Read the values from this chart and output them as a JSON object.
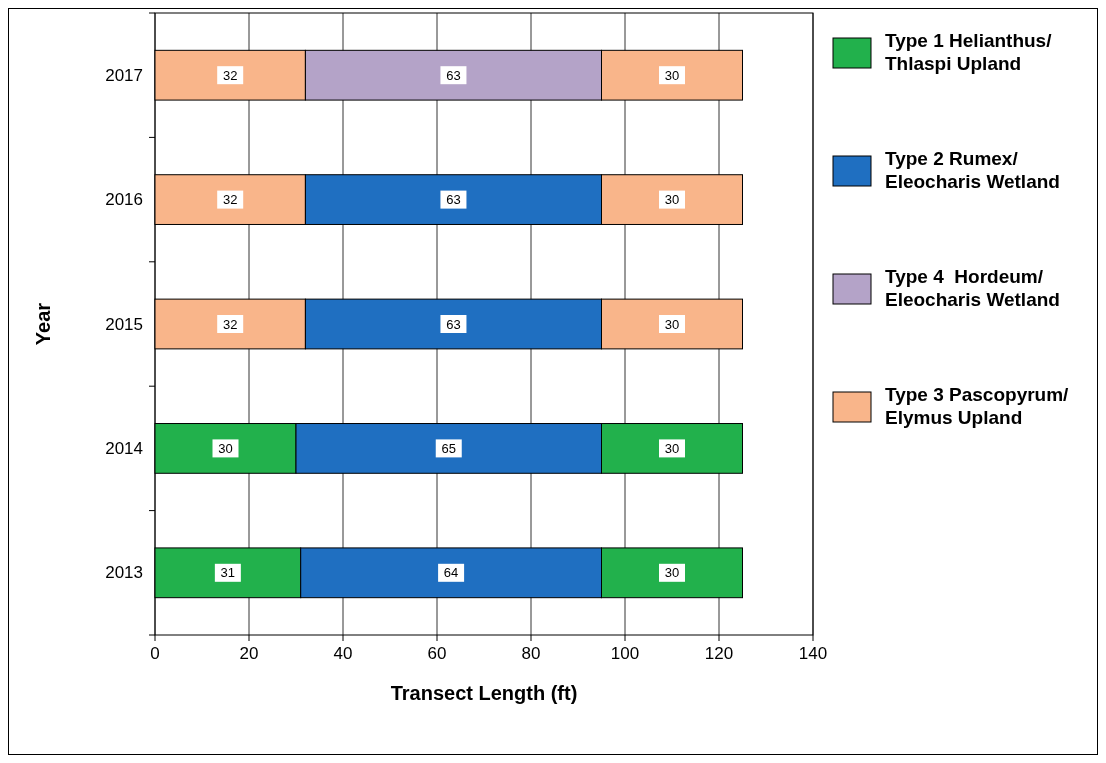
{
  "chart_data": {
    "type": "bar",
    "orientation": "horizontal",
    "stacked": true,
    "xlabel": "Transect Length (ft)",
    "ylabel": "Year",
    "categories": [
      "2017",
      "2016",
      "2015",
      "2014",
      "2013"
    ],
    "series": [
      {
        "name": "Type 1 Helianthus/ Thlaspi Upland",
        "color": "#22b14c",
        "values": [
          null,
          null,
          null,
          30,
          31
        ]
      },
      {
        "color": "#f9b58a",
        "values": [
          32,
          32,
          32,
          null,
          null
        ]
      },
      {
        "name": "Type 2 Rumex/ Eleocharis Wetland",
        "color": "#1f6fc1",
        "values": [
          null,
          63,
          63,
          65,
          64
        ]
      },
      {
        "name": "Type 4  Hordeum/ Eleocharis Wetland",
        "color": "#b4a3c8",
        "values": [
          63,
          null,
          null,
          null,
          null
        ]
      },
      {
        "color": "#22b14c",
        "values": [
          null,
          null,
          null,
          30,
          30
        ]
      },
      {
        "name": "Type 3 Pascopyrum/ Elymus Upland",
        "color": "#f9b58a",
        "values": [
          30,
          30,
          30,
          null,
          null
        ]
      }
    ],
    "xlim": [
      0,
      140
    ],
    "xticks": [
      0,
      20,
      40,
      60,
      80,
      100,
      120,
      140
    ],
    "grid": "x",
    "legend": "right",
    "data_labels": true
  }
}
